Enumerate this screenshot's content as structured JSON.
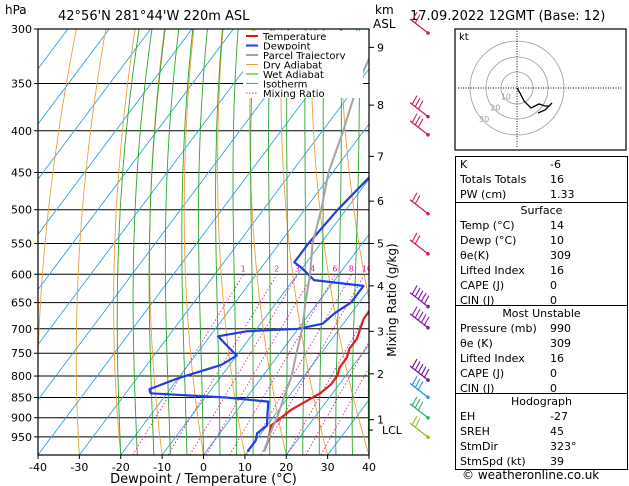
{
  "header": {
    "pressure_unit": "hPa",
    "location": "42°56'N  281°44'W  220m  ASL",
    "height_unit_line1": "km",
    "height_unit_line2": "ASL",
    "datetime": "17.09.2022  12GMT  (Base: 12)"
  },
  "chart_data": {
    "type": "line",
    "title": "42°56'N  281°44'W  220m  ASL",
    "xlabel": "Dewpoint / Temperature (°C)",
    "ylabel": "hPa",
    "xlim": [
      -40,
      40
    ],
    "ylim": [
      1000,
      300
    ],
    "y_scale": "log",
    "x_ticks": [
      "-40",
      "-30",
      "-20",
      "-10",
      "0",
      "10",
      "20",
      "30",
      "40"
    ],
    "pressure_ticks": [
      "300",
      "350",
      "400",
      "450",
      "500",
      "550",
      "600",
      "650",
      "700",
      "750",
      "800",
      "850",
      "900",
      "950"
    ],
    "km_ticks": [
      {
        "p": 316,
        "label": "9"
      },
      {
        "p": 372,
        "label": "8"
      },
      {
        "p": 430,
        "label": "7"
      },
      {
        "p": 488,
        "label": "6"
      },
      {
        "p": 550,
        "label": "5"
      },
      {
        "p": 620,
        "label": "4"
      },
      {
        "p": 705,
        "label": "3"
      },
      {
        "p": 795,
        "label": "2"
      },
      {
        "p": 905,
        "label": "1"
      }
    ],
    "lcl": {
      "p": 932,
      "label": "LCL"
    },
    "right_axis_label": "Mixing Ratio (g/kg)",
    "mixing_ratio_labels": [
      "1",
      "2",
      "3",
      "4",
      "6",
      "8",
      "10",
      "15",
      "20",
      "25"
    ],
    "legend": [
      "Temperature",
      "Dewpoint",
      "Parcel Trajectory",
      "Dry Adiabat",
      "Wet Adiabat",
      "Isotherm",
      "Mixing Ratio"
    ],
    "legend_placement": "top-right of plot",
    "series": [
      {
        "name": "Temperature",
        "color": "#e11a1a",
        "points": [
          [
            14,
            990
          ],
          [
            13,
            960
          ],
          [
            12,
            940
          ],
          [
            11,
            920
          ],
          [
            12,
            900
          ],
          [
            13,
            880
          ],
          [
            15,
            860
          ],
          [
            17,
            840
          ],
          [
            18,
            820
          ],
          [
            18,
            800
          ],
          [
            17,
            780
          ],
          [
            17,
            760
          ],
          [
            16,
            740
          ],
          [
            16,
            720
          ],
          [
            15,
            700
          ],
          [
            14,
            680
          ],
          [
            14,
            660
          ],
          [
            13,
            640
          ],
          [
            14,
            620
          ],
          [
            14,
            600
          ],
          [
            13,
            580
          ],
          [
            12,
            560
          ],
          [
            10,
            530
          ],
          [
            8,
            500
          ],
          [
            5,
            470
          ],
          [
            3,
            450
          ],
          [
            1,
            430
          ],
          [
            -1,
            410
          ],
          [
            -3,
            390
          ],
          [
            -6,
            370
          ],
          [
            -8,
            350
          ],
          [
            -11,
            330
          ],
          [
            -14,
            310
          ],
          [
            -16,
            300
          ]
        ]
      },
      {
        "name": "Dewpoint",
        "color": "#1f3fe0",
        "points": [
          [
            10,
            990
          ],
          [
            10,
            960
          ],
          [
            9,
            940
          ],
          [
            10,
            920
          ],
          [
            8,
            890
          ],
          [
            6,
            860
          ],
          [
            -5,
            850
          ],
          [
            -24,
            840
          ],
          [
            -25,
            830
          ],
          [
            -20,
            805
          ],
          [
            -12,
            775
          ],
          [
            -10,
            755
          ],
          [
            -18,
            715
          ],
          [
            -12,
            705
          ],
          [
            0,
            700
          ],
          [
            5,
            690
          ],
          [
            6,
            670
          ],
          [
            8,
            650
          ],
          [
            8,
            620
          ],
          [
            -5,
            610
          ],
          [
            -10,
            590
          ],
          [
            -13,
            580
          ],
          [
            -13,
            550
          ],
          [
            -12,
            500
          ],
          [
            -10,
            450
          ],
          [
            -8,
            420
          ],
          [
            -10,
            400
          ],
          [
            -11,
            380
          ],
          [
            -11,
            360
          ],
          [
            -11,
            340
          ],
          [
            -12,
            320
          ],
          [
            -11,
            300
          ]
        ]
      },
      {
        "name": "Parcel Trajectory",
        "color": "#a3a3a3",
        "points": [
          [
            14,
            990
          ],
          [
            12,
            935
          ],
          [
            11,
            900
          ],
          [
            9,
            850
          ],
          [
            7,
            800
          ],
          [
            4,
            750
          ],
          [
            1,
            700
          ],
          [
            -3,
            650
          ],
          [
            -7,
            600
          ],
          [
            -12,
            550
          ],
          [
            -16,
            500
          ],
          [
            -21,
            450
          ],
          [
            -25,
            400
          ],
          [
            -30,
            350
          ],
          [
            -34,
            300
          ]
        ]
      }
    ]
  },
  "indices": {
    "rows": [
      {
        "label": "K",
        "value": "-6"
      },
      {
        "label": "Totals Totals",
        "value": "16"
      },
      {
        "label": "PW (cm)",
        "value": "1.33"
      }
    ]
  },
  "surface": {
    "title": "Surface",
    "rows": [
      {
        "label": "Temp (°C)",
        "value": "14"
      },
      {
        "label": "Dewp (°C)",
        "value": "10"
      },
      {
        "label": "θe(K)",
        "value": "309"
      },
      {
        "label": "Lifted Index",
        "value": "16"
      },
      {
        "label": "CAPE (J)",
        "value": "0"
      },
      {
        "label": "CIN (J)",
        "value": "0"
      }
    ]
  },
  "unstable": {
    "title": "Most Unstable",
    "rows": [
      {
        "label": "Pressure (mb)",
        "value": "990"
      },
      {
        "label": "θe (K)",
        "value": "309"
      },
      {
        "label": "Lifted Index",
        "value": "16"
      },
      {
        "label": "CAPE (J)",
        "value": "0"
      },
      {
        "label": "CIN (J)",
        "value": "0"
      }
    ]
  },
  "hodograph_table": {
    "title": "Hodograph",
    "rows": [
      {
        "label": "EH",
        "value": "-27"
      },
      {
        "label": "SREH",
        "value": "45"
      },
      {
        "label": "StmDir",
        "value": "323°"
      },
      {
        "label": "StmSpd (kt)",
        "value": "39"
      }
    ]
  },
  "hodograph": {
    "label": "kt",
    "ring_labels": [
      "10",
      "20",
      "30"
    ]
  },
  "credit": "© weatheronline.co.uk",
  "colors": {
    "temperature": "#e11a1a",
    "dewpoint": "#1f3fe0",
    "parcel": "#a3a3a3",
    "dry_adiabat": "#e8a13a",
    "wet_adiabat": "#2aa52a",
    "isotherm": "#2ea6dd",
    "mixing_ratio": "#e0209e",
    "wind_barb": "#cc1177"
  }
}
